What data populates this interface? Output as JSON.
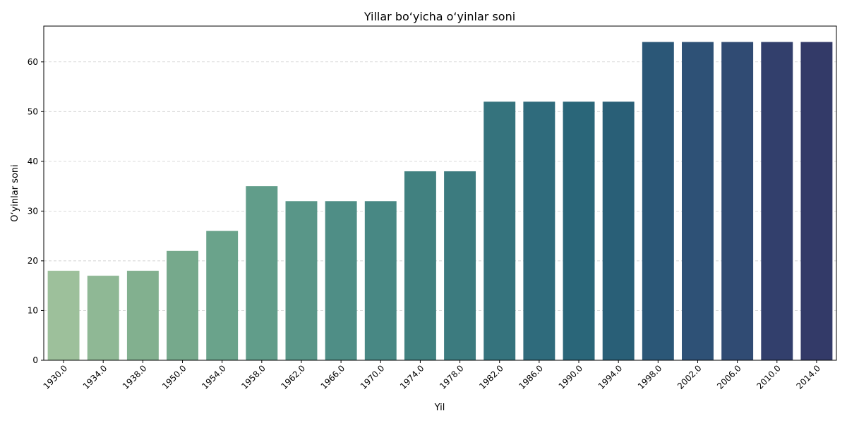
{
  "chart_data": {
    "type": "bar",
    "title": "Yillar bo‘yicha o‘yinlar soni",
    "xlabel": "Yil",
    "ylabel": "O‘yinlar soni",
    "categories": [
      "1930.0",
      "1934.0",
      "1938.0",
      "1950.0",
      "1954.0",
      "1958.0",
      "1962.0",
      "1966.0",
      "1970.0",
      "1974.0",
      "1978.0",
      "1982.0",
      "1986.0",
      "1990.0",
      "1994.0",
      "1998.0",
      "2002.0",
      "2006.0",
      "2010.0",
      "2014.0"
    ],
    "values": [
      18,
      17,
      18,
      22,
      26,
      35,
      32,
      32,
      32,
      38,
      38,
      52,
      52,
      52,
      52,
      64,
      64,
      64,
      64,
      64
    ],
    "ylim": [
      0,
      67.2
    ],
    "yticks": [
      0,
      10,
      20,
      30,
      40,
      50,
      60
    ],
    "grid": "y-dashed",
    "colors": [
      "#9dc09b",
      "#8fb895",
      "#82b08f",
      "#76a98c",
      "#6aa38b",
      "#619d8a",
      "#599688",
      "#4f8e86",
      "#488884",
      "#418180",
      "#3c7b7f",
      "#35737d",
      "#2f6b7c",
      "#2a6679",
      "#295f77",
      "#2b5777",
      "#2e5176",
      "#304b73",
      "#323f6c",
      "#333a68"
    ]
  }
}
